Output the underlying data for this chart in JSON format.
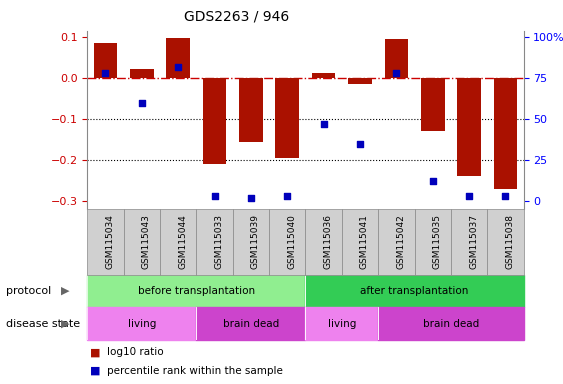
{
  "title": "GDS2263 / 946",
  "samples": [
    "GSM115034",
    "GSM115043",
    "GSM115044",
    "GSM115033",
    "GSM115039",
    "GSM115040",
    "GSM115036",
    "GSM115041",
    "GSM115042",
    "GSM115035",
    "GSM115037",
    "GSM115038"
  ],
  "log10_ratio": [
    0.085,
    0.022,
    0.098,
    -0.21,
    -0.155,
    -0.195,
    0.013,
    -0.015,
    0.095,
    -0.13,
    -0.24,
    -0.27
  ],
  "percentile_rank": [
    78,
    60,
    82,
    3,
    2,
    3,
    47,
    35,
    78,
    12,
    3,
    3
  ],
  "protocol_groups": [
    {
      "label": "before transplantation",
      "start": 0,
      "end": 6,
      "color": "#90EE90"
    },
    {
      "label": "after transplantation",
      "start": 6,
      "end": 12,
      "color": "#33CC55"
    }
  ],
  "disease_groups": [
    {
      "label": "living",
      "start": 0,
      "end": 3,
      "color": "#EE82EE"
    },
    {
      "label": "brain dead",
      "start": 3,
      "end": 6,
      "color": "#CC44CC"
    },
    {
      "label": "living",
      "start": 6,
      "end": 8,
      "color": "#EE82EE"
    },
    {
      "label": "brain dead",
      "start": 8,
      "end": 12,
      "color": "#CC44CC"
    }
  ],
  "bar_color": "#AA1100",
  "dot_color": "#0000BB",
  "hline_color": "#CC0000",
  "ylim_left": [
    -0.32,
    0.115
  ],
  "ylim_right": [
    -26.67,
    100
  ],
  "yticks_left": [
    -0.3,
    -0.2,
    -0.1,
    0.0,
    0.1
  ],
  "yticks_right_vals": [
    0,
    25,
    50,
    75,
    100
  ],
  "yticks_right_labels": [
    "0",
    "25",
    "50",
    "75",
    "100%"
  ],
  "grid_dotted": [
    -0.1,
    -0.2
  ],
  "ticklabel_bg": "#D0D0D0",
  "ticklabel_edge": "#888888",
  "legend_items": [
    {
      "label": "log10 ratio",
      "color": "#AA1100"
    },
    {
      "label": "percentile rank within the sample",
      "color": "#0000BB"
    }
  ]
}
